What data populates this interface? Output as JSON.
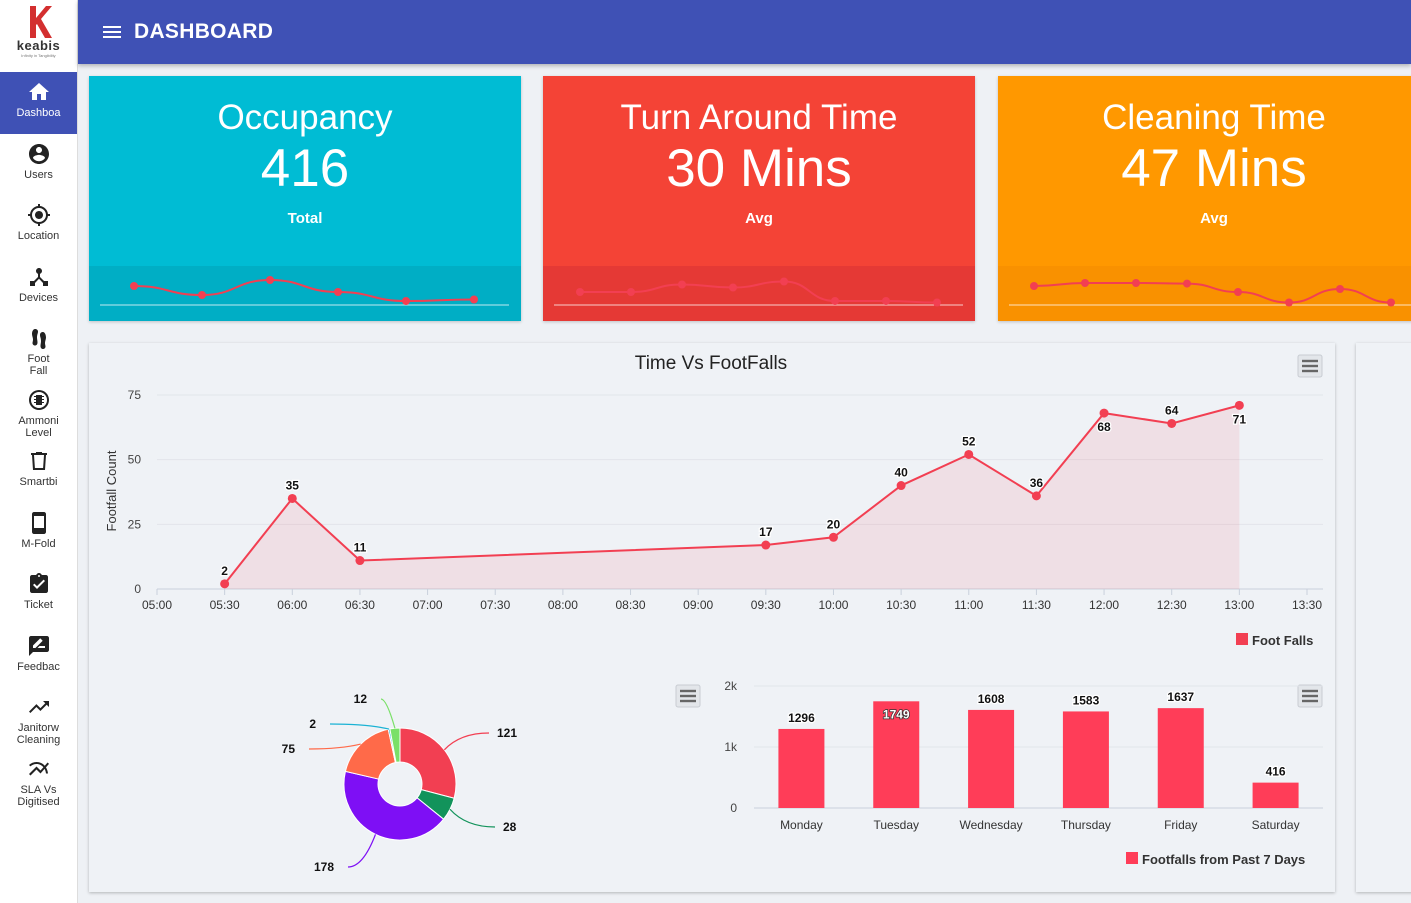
{
  "brand": {
    "name": "keabis",
    "tagline": "Infinity in Tangibility"
  },
  "header": {
    "title": "DASHBOARD"
  },
  "sidebar": {
    "items": [
      {
        "label": "Dashboa",
        "icon": "home-icon",
        "active": true
      },
      {
        "label": "Users",
        "icon": "account-circle-icon"
      },
      {
        "label": "Location",
        "icon": "gps-fixed-icon"
      },
      {
        "label": "Devices",
        "icon": "device-hub-icon"
      },
      {
        "label": "Foot\nFall",
        "icon": "footprints-icon"
      },
      {
        "label": "Ammoni\nLevel",
        "icon": "chip-icon"
      },
      {
        "label": "Smartbi",
        "icon": "trash-bin-icon"
      },
      {
        "label": "M-Fold",
        "icon": "tablet-icon"
      },
      {
        "label": "Ticket",
        "icon": "assignment-check-icon"
      },
      {
        "label": "Feedbac",
        "icon": "rate-review-icon"
      },
      {
        "label": "Janitorw\nCleaning",
        "icon": "trending-up-icon"
      },
      {
        "label": "SLA Vs\nDigitised",
        "icon": "multiline-chart-icon"
      }
    ]
  },
  "cards": [
    {
      "title": "Occupancy",
      "value": "416",
      "sub": "Total",
      "color": "#00bcd4",
      "band": "#00aec5",
      "spark": [
        6,
        3,
        8,
        4,
        1,
        1.5
      ]
    },
    {
      "title": "Turn Around Time",
      "value": "30 Mins",
      "sub": "Avg",
      "color": "#f44336",
      "band": "#e53935",
      "spark": [
        4,
        4,
        6.5,
        5.5,
        7.5,
        1,
        1,
        0.5
      ]
    },
    {
      "title": "Cleaning Time",
      "value": "47 Mins",
      "sub": "Avg",
      "color": "#ff9800",
      "band": "#f99100",
      "spark": [
        6,
        7,
        7,
        6.8,
        4,
        0.5,
        5,
        0.5
      ]
    }
  ],
  "chart_data": [
    {
      "type": "area",
      "title": "Time Vs FootFalls",
      "ylabel": "Footfall Count",
      "xlabel": "",
      "x_ticks": [
        "05:00",
        "05:30",
        "06:00",
        "06:30",
        "07:00",
        "07:30",
        "08:00",
        "08:30",
        "09:00",
        "09:30",
        "10:00",
        "10:30",
        "11:00",
        "11:30",
        "12:00",
        "12:30",
        "13:00",
        "13:30"
      ],
      "ylim": [
        0,
        75
      ],
      "y_ticks": [
        0,
        25,
        50,
        75
      ],
      "series": [
        {
          "name": "Foot Falls",
          "color": "#f23f52",
          "x": [
            "05:30",
            "06:00",
            "06:30",
            "09:30",
            "10:00",
            "10:30",
            "11:00",
            "11:30",
            "12:00",
            "12:30",
            "13:00"
          ],
          "values": [
            2,
            35,
            11,
            17,
            20,
            40,
            52,
            36,
            68,
            64,
            71
          ]
        }
      ],
      "grid": true,
      "legend": "bottom-right"
    },
    {
      "type": "pie",
      "labels": [
        "121",
        "28",
        "178",
        "75",
        "2",
        "12"
      ],
      "values": [
        121,
        28,
        178,
        75,
        2,
        12
      ],
      "colors": [
        "#f23f52",
        "#12935b",
        "#7e0ff5",
        "#ff6a49",
        "#1ab2d4",
        "#7ae068"
      ]
    },
    {
      "type": "bar",
      "categories": [
        "Monday",
        "Tuesday",
        "Wednesday",
        "Thursday",
        "Friday",
        "Saturday"
      ],
      "values": [
        1296,
        1749,
        1608,
        1583,
        1637,
        416
      ],
      "y_ticks": [
        "0",
        "1k",
        "2k"
      ],
      "ylim": [
        0,
        2000
      ],
      "series_name": "Footfalls from Past 7 Days",
      "color": "#ff3d58",
      "legend": "bottom-right"
    }
  ]
}
